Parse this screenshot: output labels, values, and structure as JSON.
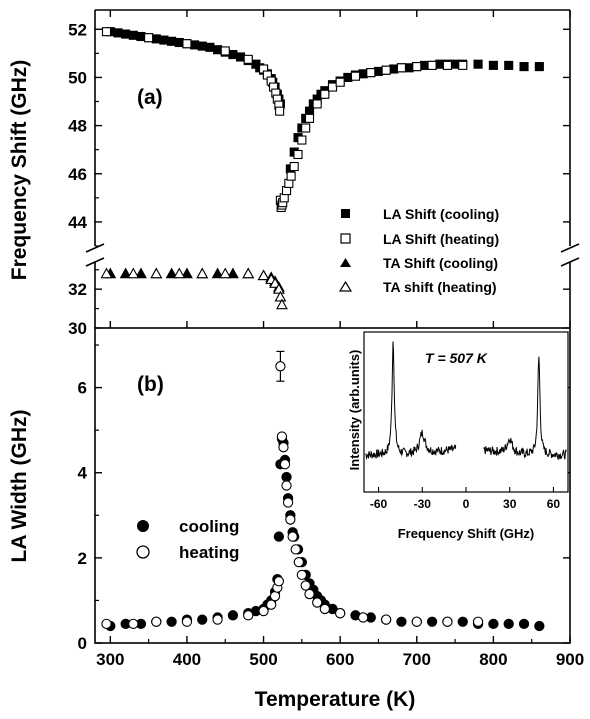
{
  "chart_data": [
    {
      "type": "scatter",
      "panel_label": "(a)",
      "xlabel": "Temperature (K)",
      "ylabel": "Frequency Shift (GHz)",
      "xlim": [
        280,
        900
      ],
      "ylim_upper_segment": [
        43,
        52.8
      ],
      "ylim_lower_segment": [
        30,
        33.4
      ],
      "y_axis_break": true,
      "y_ticks": [
        "30",
        "32",
        "44",
        "46",
        "48",
        "50",
        "52"
      ],
      "legend_position": "right",
      "series": [
        {
          "name": "LA Shift (cooling)",
          "marker": "filled-square",
          "x": [
            300,
            310,
            320,
            330,
            340,
            350,
            360,
            370,
            380,
            390,
            400,
            410,
            420,
            430,
            440,
            450,
            460,
            470,
            480,
            490,
            495,
            500,
            505,
            510,
            512,
            515,
            518,
            520,
            522,
            535,
            540,
            545,
            550,
            555,
            560,
            565,
            570,
            575,
            580,
            590,
            600,
            610,
            620,
            630,
            640,
            650,
            660,
            670,
            680,
            690,
            700,
            710,
            720,
            730,
            740,
            750,
            760,
            780,
            800,
            820,
            840,
            860
          ],
          "y": [
            51.9,
            51.85,
            51.8,
            51.75,
            51.7,
            51.65,
            51.6,
            51.55,
            51.5,
            51.45,
            51.4,
            51.35,
            51.3,
            51.25,
            51.15,
            51.05,
            50.95,
            50.85,
            50.7,
            50.55,
            50.4,
            50.3,
            50.15,
            49.95,
            49.8,
            49.6,
            49.3,
            49.1,
            48.9,
            46.2,
            46.9,
            47.5,
            47.9,
            48.3,
            48.6,
            48.9,
            49.1,
            49.3,
            49.45,
            49.7,
            49.85,
            50.0,
            50.1,
            50.15,
            50.2,
            50.25,
            50.3,
            50.35,
            50.4,
            50.4,
            50.45,
            50.5,
            50.5,
            50.55,
            50.55,
            50.55,
            50.55,
            50.55,
            50.5,
            50.5,
            50.45,
            50.45
          ]
        },
        {
          "name": "LA Shift (heating)",
          "marker": "open-square",
          "x": [
            295,
            350,
            400,
            450,
            480,
            500,
            505,
            510,
            513,
            516,
            518,
            520,
            521,
            522,
            523,
            524,
            525,
            527,
            530,
            533,
            536,
            540,
            545,
            550,
            555,
            560,
            570,
            580,
            590,
            600,
            620,
            640,
            660,
            680,
            700,
            720,
            740,
            760
          ],
          "y": [
            51.9,
            51.65,
            51.4,
            51.1,
            50.75,
            50.35,
            50.1,
            49.85,
            49.6,
            49.35,
            49.1,
            48.85,
            48.6,
            44.9,
            44.6,
            44.7,
            44.8,
            45.0,
            45.3,
            45.6,
            45.9,
            46.3,
            46.8,
            47.4,
            47.9,
            48.3,
            48.9,
            49.3,
            49.6,
            49.8,
            50.05,
            50.2,
            50.3,
            50.4,
            50.45,
            50.5,
            50.5,
            50.5
          ]
        },
        {
          "name": "TA Shift (cooling)",
          "marker": "filled-triangle",
          "x": [
            300,
            320,
            340,
            360,
            380,
            400,
            420,
            440,
            460,
            480,
            500,
            510,
            515,
            520
          ],
          "y": [
            32.8,
            32.8,
            32.8,
            32.8,
            32.8,
            32.8,
            32.8,
            32.8,
            32.8,
            32.8,
            32.7,
            32.6,
            32.4,
            32.1
          ]
        },
        {
          "name": "TA shift (heating)",
          "marker": "open-triangle",
          "x": [
            295,
            330,
            360,
            390,
            420,
            450,
            480,
            500,
            510,
            515,
            520,
            522,
            524
          ],
          "y": [
            32.8,
            32.8,
            32.8,
            32.8,
            32.8,
            32.8,
            32.8,
            32.7,
            32.5,
            32.3,
            32.0,
            31.6,
            31.2
          ]
        }
      ]
    },
    {
      "type": "scatter",
      "panel_label": "(b)",
      "xlabel": "Temperature (K)",
      "ylabel": "LA Width (GHz)",
      "xlim": [
        280,
        900
      ],
      "ylim": [
        0,
        7.4
      ],
      "x_ticks": [
        "300",
        "400",
        "500",
        "600",
        "700",
        "800",
        "900"
      ],
      "y_ticks": [
        "0",
        "2",
        "4",
        "6"
      ],
      "legend_position": "middle-left",
      "series": [
        {
          "name": "cooling",
          "marker": "filled-circle",
          "x": [
            300,
            320,
            340,
            360,
            380,
            400,
            420,
            440,
            460,
            480,
            490,
            500,
            505,
            510,
            515,
            518,
            520,
            522,
            524,
            526,
            528,
            530,
            532,
            535,
            538,
            540,
            545,
            550,
            555,
            560,
            565,
            570,
            575,
            580,
            590,
            600,
            620,
            640,
            660,
            680,
            700,
            720,
            740,
            760,
            780,
            800,
            820,
            840,
            860
          ],
          "y": [
            0.4,
            0.45,
            0.45,
            0.5,
            0.5,
            0.55,
            0.55,
            0.6,
            0.65,
            0.7,
            0.75,
            0.8,
            0.9,
            1.0,
            1.2,
            1.5,
            2.5,
            4.2,
            4.8,
            4.7,
            4.3,
            3.9,
            3.4,
            3.0,
            2.6,
            2.5,
            2.2,
            1.9,
            1.6,
            1.4,
            1.25,
            1.1,
            1.0,
            0.9,
            0.8,
            0.7,
            0.65,
            0.6,
            0.55,
            0.5,
            0.5,
            0.5,
            0.5,
            0.5,
            0.45,
            0.45,
            0.45,
            0.45,
            0.4
          ]
        },
        {
          "name": "heating",
          "marker": "open-circle",
          "x": [
            295,
            330,
            360,
            400,
            440,
            480,
            500,
            510,
            515,
            518,
            520,
            522,
            524,
            526,
            528,
            530,
            532,
            535,
            538,
            542,
            546,
            550,
            555,
            560,
            570,
            580,
            600,
            630,
            660,
            700,
            740,
            780
          ],
          "y": [
            0.45,
            0.45,
            0.5,
            0.5,
            0.55,
            0.65,
            0.75,
            0.9,
            1.1,
            1.3,
            1.45,
            6.5,
            4.85,
            4.6,
            4.2,
            3.7,
            3.3,
            2.9,
            2.5,
            2.2,
            1.9,
            1.6,
            1.35,
            1.15,
            0.95,
            0.8,
            0.7,
            0.6,
            0.55,
            0.5,
            0.5,
            0.5
          ]
        }
      ],
      "inset": {
        "type": "line",
        "annotation": "T = 507 K",
        "xlabel": "Frequency Shift (GHz)",
        "ylabel": "Intensity (arb.units)",
        "xlim": [
          -70,
          70
        ],
        "x_ticks": [
          "-60",
          "-30",
          "0",
          "30",
          "60"
        ],
        "peaks": [
          {
            "x": -50,
            "height": 1.0
          },
          {
            "x": -30,
            "height": 0.18
          },
          {
            "x": 30,
            "height": 0.13
          },
          {
            "x": 50,
            "height": 0.85
          }
        ],
        "gap": [
          -7,
          12
        ]
      }
    }
  ]
}
